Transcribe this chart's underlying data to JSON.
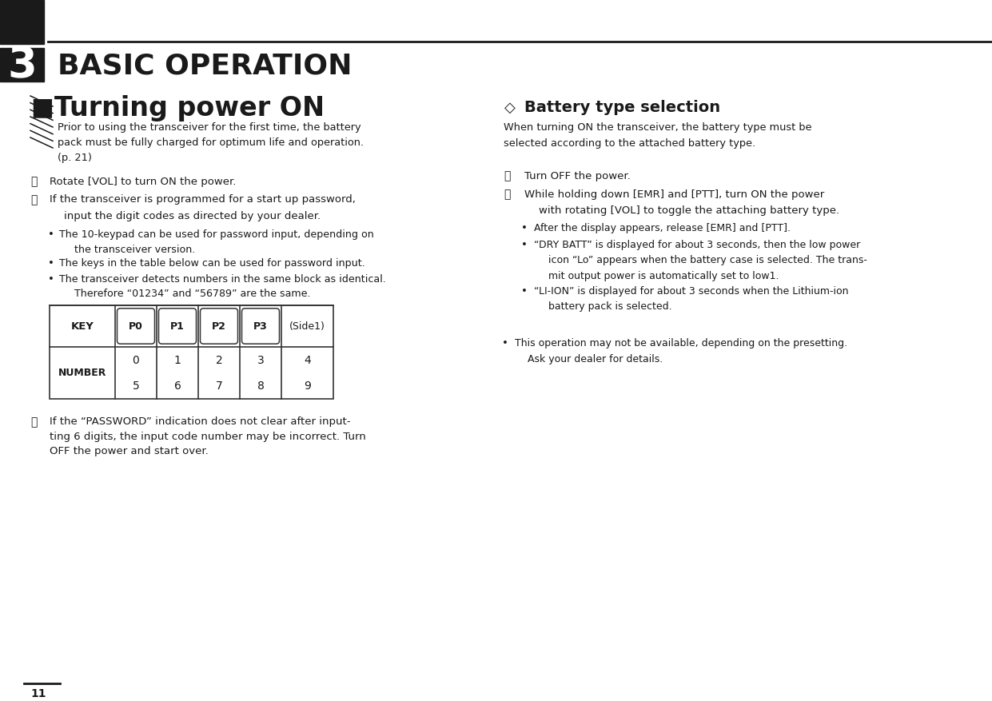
{
  "bg_color": "#ffffff",
  "page_num": "11",
  "chapter_num": "3",
  "chapter_title": "BASIC OPERATION",
  "key_labels": [
    "P0",
    "P1",
    "P2",
    "P3",
    "(Side1)"
  ],
  "number_top": [
    "0",
    "1",
    "2",
    "3",
    "4"
  ],
  "number_bot": [
    "5",
    "6",
    "7",
    "8",
    "9"
  ]
}
